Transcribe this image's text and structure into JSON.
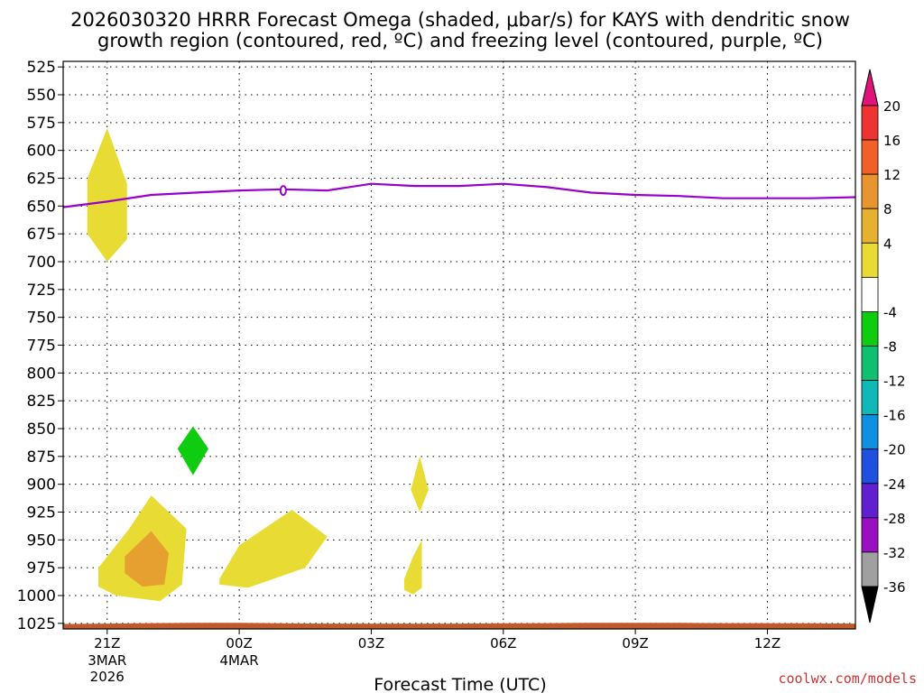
{
  "chart_data": {
    "type": "heatmap",
    "title_line1": "2026030320 HRRR Forecast Omega (shaded, μbar/s) for KAYS with dendritic snow",
    "title_line2": "growth region (contoured, red, ºC) and freezing level (contoured, purple, ºC)",
    "xlabel": "Forecast Time (UTC)",
    "credit": "coolwx.com/models",
    "credit_color": "#cc3333",
    "x_range_hours": [
      -1.0,
      17.0
    ],
    "y_range_hpa": [
      520,
      1030
    ],
    "y_ticks": [
      525,
      550,
      575,
      600,
      625,
      650,
      675,
      700,
      725,
      750,
      775,
      800,
      825,
      850,
      875,
      900,
      925,
      950,
      975,
      1000,
      1025
    ],
    "x_ticks": [
      {
        "hour": 0,
        "line1": "21Z",
        "line2": "3MAR",
        "line3": "2026"
      },
      {
        "hour": 3,
        "line1": "00Z",
        "line2": "4MAR",
        "line3": ""
      },
      {
        "hour": 6,
        "line1": "03Z",
        "line2": "",
        "line3": ""
      },
      {
        "hour": 9,
        "line1": "06Z",
        "line2": "",
        "line3": ""
      },
      {
        "hour": 12,
        "line1": "09Z",
        "line2": "",
        "line3": ""
      },
      {
        "hour": 15,
        "line1": "12Z",
        "line2": "",
        "line3": ""
      }
    ],
    "colorbar": {
      "labels": [
        "20",
        "16",
        "12",
        "8",
        "4",
        "-4",
        "-8",
        "-12",
        "-16",
        "-20",
        "-24",
        "-28",
        "-32",
        "-36"
      ],
      "top_arrow_color": "#e0137a",
      "bottom_arrow_color": "#000000",
      "segments": [
        {
          "from": 16,
          "to": 20,
          "color": "#ee3333"
        },
        {
          "from": 12,
          "to": 16,
          "color": "#f06028"
        },
        {
          "from": 8,
          "to": 12,
          "color": "#e89430"
        },
        {
          "from": 4,
          "to": 8,
          "color": "#e6b030"
        },
        {
          "from": 0,
          "to": 4,
          "color": "#e8dc34"
        },
        {
          "from": -4,
          "to": 0,
          "color": "#ffffff"
        },
        {
          "from": -8,
          "to": -4,
          "color": "#10cc10"
        },
        {
          "from": -12,
          "to": -8,
          "color": "#10c070"
        },
        {
          "from": -16,
          "to": -12,
          "color": "#10b8b8"
        },
        {
          "from": -20,
          "to": -16,
          "color": "#1090e0"
        },
        {
          "from": -24,
          "to": -20,
          "color": "#2050e0"
        },
        {
          "from": -28,
          "to": -24,
          "color": "#6020d0"
        },
        {
          "from": -32,
          "to": -28,
          "color": "#9a10c0"
        },
        {
          "from": -36,
          "to": -32,
          "color": "#a0a0a0"
        }
      ]
    },
    "freezing_level": {
      "color": "#9a00cc",
      "hours": [
        -1.0,
        0.0,
        1.0,
        2.0,
        3.0,
        4.0,
        5.0,
        6.0,
        7.0,
        8.0,
        9.0,
        10.0,
        11.0,
        12.0,
        13.0,
        14.0,
        15.0,
        16.0,
        17.0
      ],
      "pressure_hpa": [
        651,
        646,
        640,
        638,
        636,
        635,
        636,
        630,
        632,
        632,
        630,
        633,
        638,
        640,
        641,
        643,
        643,
        643,
        642
      ]
    },
    "omega_regions": [
      {
        "value": "0 to 4",
        "color": "#e8dc34",
        "hours": [
          0.0,
          0.45,
          0.45,
          0.0,
          -0.45,
          -0.45
        ],
        "pressure_hpa": [
          580,
          630,
          680,
          700,
          675,
          625
        ]
      },
      {
        "value": "0 to 4",
        "color": "#e8dc34",
        "hours": [
          -0.2,
          0.5,
          1.0,
          1.8,
          1.7,
          1.2,
          0.2,
          -0.2
        ],
        "pressure_hpa": [
          975,
          940,
          910,
          940,
          990,
          1005,
          1000,
          992
        ]
      },
      {
        "value": "4 to 8",
        "color": "#e6a030",
        "hours": [
          0.4,
          1.0,
          1.4,
          1.3,
          0.8,
          0.4
        ],
        "pressure_hpa": [
          965,
          942,
          962,
          990,
          992,
          980
        ]
      },
      {
        "value": "0 to 4",
        "color": "#e8dc34",
        "hours": [
          2.55,
          3.0,
          4.2,
          5.0,
          4.5,
          3.2,
          2.55
        ],
        "pressure_hpa": [
          985,
          955,
          923,
          947,
          975,
          993,
          990
        ]
      },
      {
        "value": "0 to 4",
        "color": "#e8dc34",
        "hours": [
          6.9,
          7.1,
          7.3,
          7.1
        ],
        "pressure_hpa": [
          905,
          875,
          905,
          925
        ]
      },
      {
        "value": "0 to 4",
        "color": "#e8dc34",
        "hours": [
          6.75,
          6.95,
          7.15,
          7.15,
          6.95,
          6.75
        ],
        "pressure_hpa": [
          985,
          965,
          950,
          993,
          999,
          995
        ]
      },
      {
        "value": "-4 to -8",
        "color": "#10cc10",
        "hours": [
          1.95,
          2.3,
          1.95,
          1.6
        ],
        "pressure_hpa": [
          848,
          868,
          892,
          868
        ]
      }
    ],
    "surface": {
      "color": "#c05a2a",
      "hours": [
        -1.0,
        0.0,
        1.0,
        2.0,
        3.0,
        4.0,
        5.0,
        6.0,
        7.0,
        8.0,
        9.0,
        10.0,
        11.0,
        12.0,
        13.0,
        14.0,
        15.0,
        16.0,
        17.0
      ],
      "pressure_hpa": [
        1025.5,
        1025.2,
        1024.8,
        1024.6,
        1024.6,
        1025.0,
        1025.2,
        1025.2,
        1025.2,
        1025.2,
        1025.0,
        1024.8,
        1024.6,
        1024.6,
        1024.6,
        1024.8,
        1024.8,
        1025.0,
        1025.2
      ]
    },
    "marker": {
      "type": "contour-label",
      "hour": 4.0,
      "pressure_hpa": 636
    }
  }
}
